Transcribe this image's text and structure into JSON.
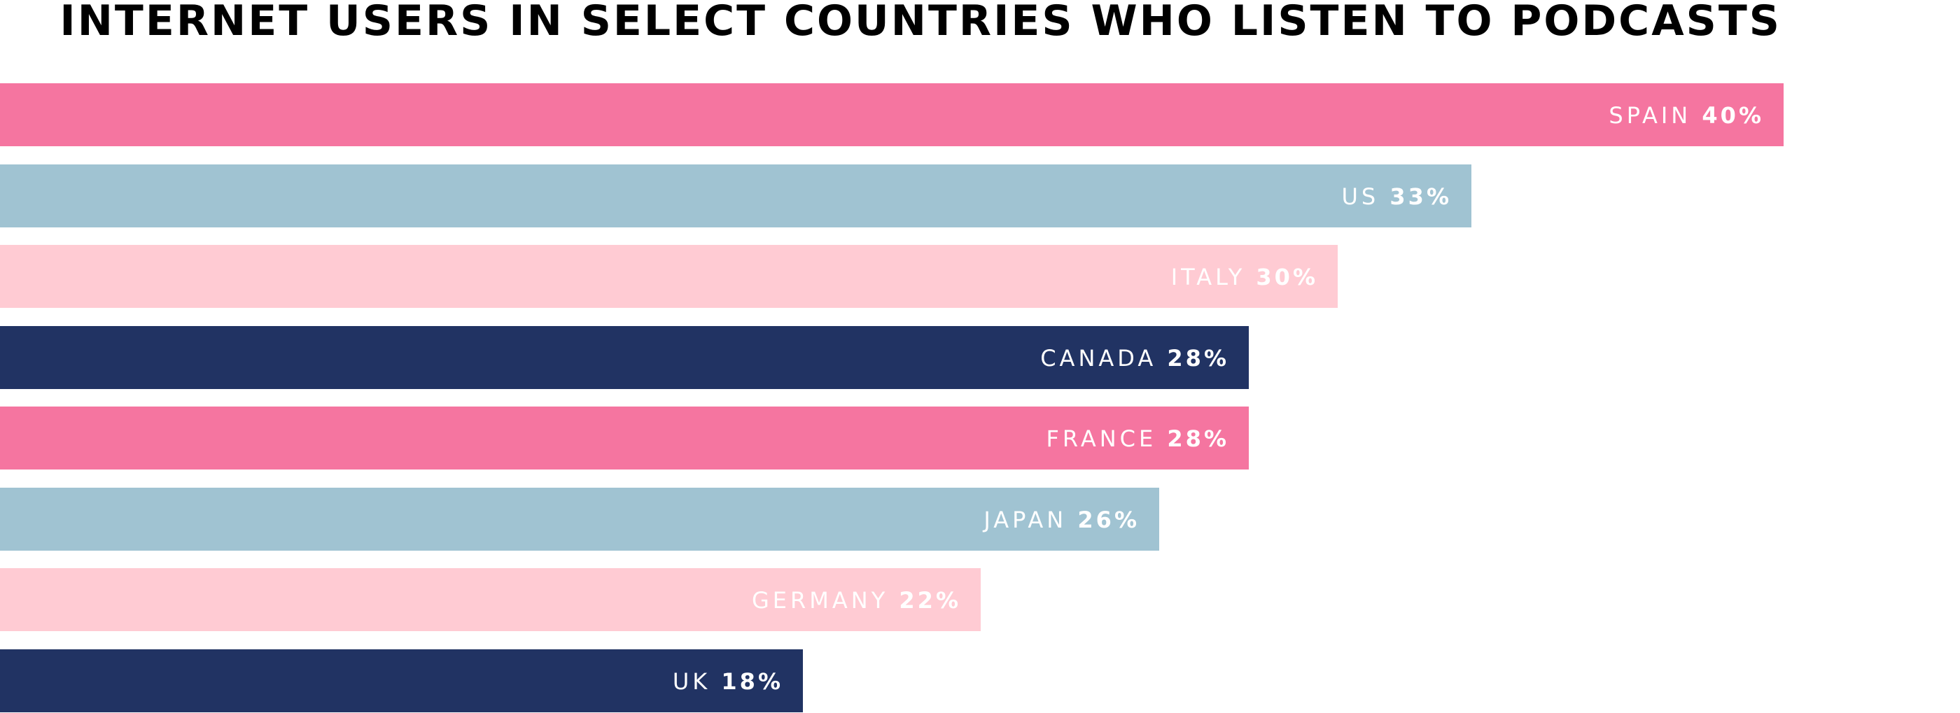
{
  "chart_data": {
    "type": "bar",
    "orientation": "horizontal",
    "title": "INTERNET USERS IN SELECT COUNTRIES WHO LISTEN TO PODCASTS",
    "categories": [
      "SPAIN",
      "US",
      "ITALY",
      "CANADA",
      "FRANCE",
      "JAPAN",
      "GERMANY",
      "UK"
    ],
    "values": [
      40,
      33,
      30,
      28,
      28,
      26,
      22,
      18
    ],
    "value_labels": [
      "40%",
      "33%",
      "30%",
      "28%",
      "28%",
      "26%",
      "22%",
      "18%"
    ],
    "unit": "%",
    "xlim": [
      0,
      40
    ],
    "grid": false,
    "legend": "none",
    "bar_colors": [
      "#f575a0",
      "#a0c3d2",
      "#ffcbd3",
      "#213363",
      "#f575a0",
      "#a0c3d2",
      "#ffcbd3",
      "#213363"
    ],
    "label_color": "#ffffff"
  }
}
